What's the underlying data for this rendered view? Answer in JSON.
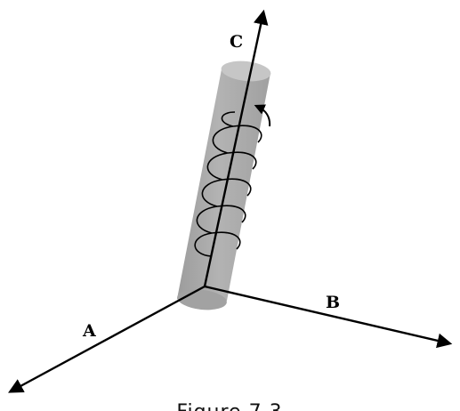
{
  "figure": {
    "caption": "Figure 7.3",
    "axis_labels": {
      "a": "A",
      "b": "B",
      "c": "C"
    },
    "colors": {
      "cylinder_fill": "#a9a9a9",
      "cylinder_top": "#c4c4c4",
      "line": "#000000"
    },
    "icons": [
      "helix-coil",
      "rotation-arrow"
    ]
  }
}
